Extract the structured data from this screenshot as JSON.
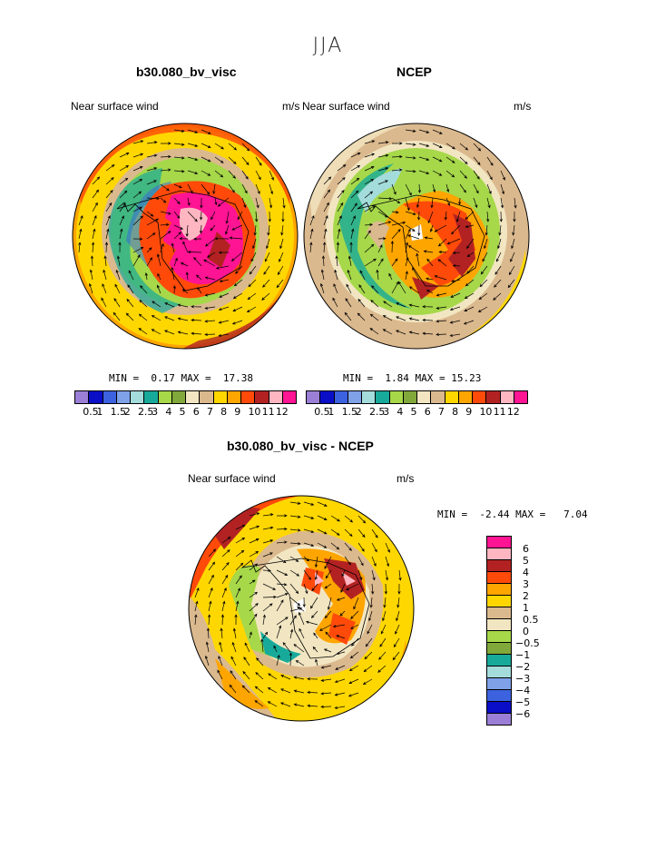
{
  "season": "JJA",
  "panels": [
    {
      "title": "b30.080_bv_visc",
      "left_label": "Near surface wind",
      "right_label": "m/s",
      "min_label": "MIN =",
      "min": "0.17",
      "max_label": "MAX =",
      "max": "17.38"
    },
    {
      "title": "NCEP",
      "left_label": "Near surface wind",
      "right_label": "m/s",
      "min_label": "MIN =",
      "min": "1.84",
      "max_label": "MAX =",
      "max": "15.23"
    },
    {
      "title": "b30.080_bv_visc - NCEP",
      "left_label": "Near surface wind",
      "right_label": "m/s",
      "min_label": "MIN =",
      "min": "-2.44",
      "max_label": "MAX =",
      "max": "7.04"
    }
  ],
  "colors_abs": [
    "#9b7fd6",
    "#0a0ec6",
    "#3c62e0",
    "#7ea1e8",
    "#a4dcdc",
    "#17aa9a",
    "#a6d84a",
    "#81a83a",
    "#f2e6c2",
    "#dbb98e",
    "#ffd700",
    "#ffa500",
    "#ff4a0a",
    "#b22222",
    "#ffb6c1",
    "#ff1493"
  ],
  "colors_diff": [
    "#ff1493",
    "#ffb6c1",
    "#b22222",
    "#ff4a0a",
    "#ffa500",
    "#ffd700",
    "#dbb98e",
    "#f2e6c2",
    "#a6d84a",
    "#81a83a",
    "#17aa9a",
    "#a4dcdc",
    "#7ea1e8",
    "#3c62e0",
    "#0a0ec6",
    "#9b7fd6"
  ],
  "levels_abs": [
    "0.5",
    "1",
    "1.5",
    "2",
    "2.5",
    "3",
    "4",
    "5",
    "6",
    "7",
    "8",
    "9",
    "10",
    "11",
    "12"
  ],
  "levels_diff": [
    "6",
    "5",
    "4",
    "3",
    "2",
    "1",
    "0.5",
    "0",
    "-0.5",
    "-1",
    "-2",
    "-3",
    "-4",
    "-5",
    "-6"
  ]
}
